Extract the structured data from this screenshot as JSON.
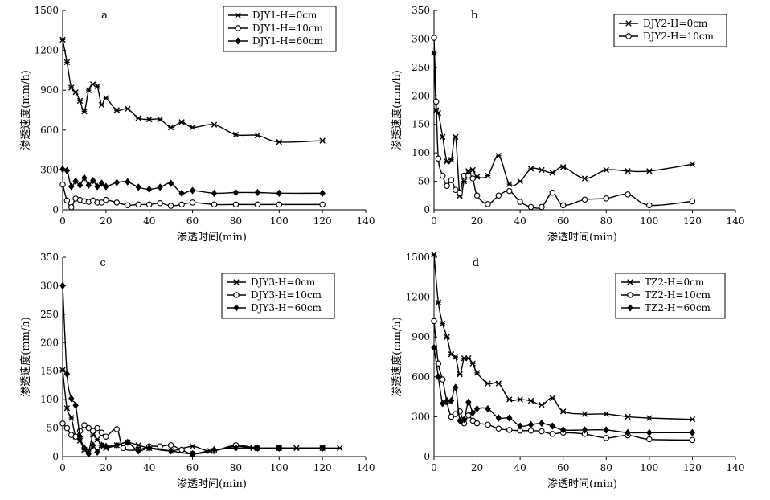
{
  "chart_data": [
    {
      "type": "line",
      "panel_label": "a",
      "xlabel": "渗透时间(min)",
      "ylabel": "渗透速度(mm/h)",
      "xlim": [
        0,
        140
      ],
      "ylim": [
        0,
        1500
      ],
      "xticks": [
        0,
        20,
        40,
        60,
        80,
        100,
        120,
        140
      ],
      "yticks": [
        0,
        300,
        600,
        900,
        1200,
        1500
      ],
      "legend_position": "top-right",
      "series": [
        {
          "name": "DJY1-H=0cm",
          "marker": "asterisk",
          "x": [
            0,
            2,
            4,
            6,
            8,
            10,
            12,
            14,
            16,
            18,
            20,
            25,
            30,
            35,
            40,
            45,
            50,
            55,
            60,
            70,
            80,
            90,
            100,
            120
          ],
          "y": [
            1280,
            1110,
            920,
            885,
            820,
            740,
            900,
            945,
            930,
            790,
            840,
            750,
            760,
            690,
            680,
            680,
            620,
            660,
            620,
            640,
            565,
            560,
            510,
            520
          ]
        },
        {
          "name": "DJY1-H=10cm",
          "marker": "circle",
          "x": [
            0,
            2,
            4,
            6,
            8,
            10,
            12,
            14,
            16,
            18,
            20,
            25,
            30,
            35,
            40,
            45,
            50,
            55,
            60,
            70,
            80,
            90,
            100,
            120
          ],
          "y": [
            190,
            70,
            20,
            85,
            75,
            65,
            60,
            70,
            55,
            55,
            75,
            55,
            35,
            40,
            40,
            50,
            30,
            40,
            55,
            40,
            40,
            40,
            40,
            40
          ]
        },
        {
          "name": "DJY1-H=60cm",
          "marker": "diamond",
          "x": [
            0,
            2,
            4,
            6,
            8,
            10,
            12,
            14,
            16,
            18,
            20,
            25,
            30,
            35,
            40,
            45,
            50,
            55,
            60,
            70,
            80,
            90,
            100,
            120
          ],
          "y": [
            305,
            295,
            175,
            215,
            185,
            240,
            185,
            220,
            175,
            200,
            175,
            205,
            210,
            170,
            155,
            170,
            200,
            125,
            145,
            125,
            130,
            130,
            125,
            125
          ]
        }
      ]
    },
    {
      "type": "line",
      "panel_label": "b",
      "xlabel": "渗透时间(min)",
      "ylabel": "渗透速度(mm/h)",
      "xlim": [
        0,
        140
      ],
      "ylim": [
        0,
        350
      ],
      "xticks": [
        0,
        20,
        40,
        60,
        80,
        100,
        120,
        140
      ],
      "yticks": [
        0,
        50,
        100,
        150,
        200,
        250,
        300,
        350
      ],
      "legend_position": "top-right",
      "series": [
        {
          "name": "DJY2-H=0cm",
          "marker": "asterisk",
          "x": [
            0,
            1,
            2,
            4,
            6,
            8,
            10,
            12,
            14,
            16,
            18,
            20,
            25,
            30,
            35,
            40,
            45,
            50,
            55,
            60,
            70,
            80,
            90,
            100,
            120
          ],
          "y": [
            275,
            175,
            170,
            128,
            85,
            88,
            128,
            25,
            50,
            68,
            70,
            58,
            60,
            95,
            45,
            50,
            72,
            70,
            65,
            75,
            55,
            70,
            68,
            68,
            80
          ]
        },
        {
          "name": "DJY2-H=10cm",
          "marker": "circle",
          "x": [
            0,
            1,
            2,
            4,
            6,
            8,
            10,
            12,
            14,
            16,
            18,
            20,
            25,
            30,
            35,
            40,
            45,
            50,
            55,
            60,
            70,
            80,
            90,
            100,
            120
          ],
          "y": [
            302,
            190,
            90,
            60,
            42,
            52,
            35,
            30,
            60,
            60,
            55,
            25,
            10,
            25,
            33,
            14,
            5,
            5,
            30,
            8,
            18,
            20,
            27,
            8,
            15
          ]
        }
      ]
    },
    {
      "type": "line",
      "panel_label": "c",
      "xlabel": "渗透时间(min)",
      "ylabel": "渗透速度(mm/h)",
      "xlim": [
        0,
        140
      ],
      "ylim": [
        0,
        350
      ],
      "xticks": [
        0,
        20,
        40,
        60,
        80,
        100,
        120,
        140
      ],
      "yticks": [
        0,
        50,
        100,
        150,
        200,
        250,
        300,
        350
      ],
      "legend_position": "top-right",
      "series": [
        {
          "name": "DJY3-H=0cm",
          "marker": "asterisk",
          "x": [
            0,
            2,
            4,
            6,
            8,
            10,
            12,
            14,
            16,
            18,
            20,
            25,
            30,
            35,
            40,
            50,
            60,
            68,
            80,
            88,
            100,
            108,
            120,
            128
          ],
          "y": [
            152,
            85,
            68,
            35,
            28,
            12,
            10,
            38,
            30,
            20,
            15,
            20,
            25,
            20,
            15,
            10,
            18,
            10,
            18,
            15,
            15,
            15,
            15,
            15
          ]
        },
        {
          "name": "DJY3-H=10cm",
          "marker": "circle",
          "x": [
            0,
            2,
            4,
            6,
            8,
            10,
            12,
            14,
            16,
            18,
            20,
            25,
            28,
            35,
            40,
            45,
            50,
            55,
            60,
            70,
            80,
            90,
            100,
            120
          ],
          "y": [
            58,
            50,
            38,
            35,
            45,
            55,
            50,
            45,
            50,
            42,
            35,
            48,
            15,
            12,
            18,
            18,
            20,
            12,
            5,
            10,
            20,
            15,
            15,
            15
          ]
        },
        {
          "name": "DJY3-H=60cm",
          "marker": "diamond",
          "x": [
            0,
            2,
            4,
            6,
            8,
            10,
            12,
            14,
            16,
            18,
            20,
            25,
            30,
            35,
            40,
            50,
            60,
            70,
            80,
            90,
            100,
            120
          ],
          "y": [
            300,
            145,
            102,
            90,
            35,
            15,
            5,
            20,
            8,
            20,
            18,
            20,
            25,
            10,
            15,
            10,
            5,
            12,
            15,
            15,
            15,
            15
          ]
        }
      ]
    },
    {
      "type": "line",
      "panel_label": "d",
      "xlabel": "渗透时间(min)",
      "ylabel": "渗透速度(mm/h)",
      "xlim": [
        0,
        140
      ],
      "ylim": [
        0,
        1500
      ],
      "xticks": [
        0,
        20,
        40,
        60,
        80,
        100,
        120,
        140
      ],
      "yticks": [
        0,
        300,
        600,
        900,
        1200,
        1500
      ],
      "legend_position": "top-right",
      "series": [
        {
          "name": "TZ2-H=0cm",
          "marker": "asterisk",
          "x": [
            0,
            2,
            4,
            6,
            8,
            10,
            12,
            14,
            16,
            18,
            20,
            25,
            30,
            35,
            40,
            45,
            50,
            55,
            60,
            70,
            80,
            90,
            100,
            120
          ],
          "y": [
            1520,
            1160,
            1000,
            900,
            770,
            750,
            620,
            740,
            740,
            700,
            630,
            550,
            550,
            430,
            430,
            420,
            390,
            440,
            340,
            320,
            320,
            300,
            290,
            280
          ]
        },
        {
          "name": "TZ2-H=10cm",
          "marker": "circle",
          "x": [
            0,
            2,
            4,
            6,
            8,
            10,
            12,
            14,
            16,
            18,
            20,
            25,
            30,
            35,
            40,
            45,
            50,
            55,
            60,
            70,
            80,
            90,
            100,
            120
          ],
          "y": [
            1020,
            700,
            580,
            410,
            300,
            320,
            340,
            250,
            310,
            270,
            250,
            240,
            210,
            200,
            195,
            195,
            190,
            170,
            180,
            170,
            140,
            160,
            130,
            125
          ]
        },
        {
          "name": "TZ2-H=60cm",
          "marker": "diamond",
          "x": [
            0,
            2,
            4,
            6,
            8,
            10,
            12,
            14,
            16,
            18,
            20,
            25,
            30,
            35,
            40,
            45,
            50,
            55,
            60,
            70,
            80,
            90,
            100,
            120
          ],
          "y": [
            820,
            600,
            400,
            420,
            420,
            520,
            270,
            280,
            410,
            330,
            360,
            360,
            290,
            290,
            230,
            240,
            250,
            230,
            200,
            200,
            200,
            180,
            180,
            180
          ]
        }
      ]
    }
  ]
}
